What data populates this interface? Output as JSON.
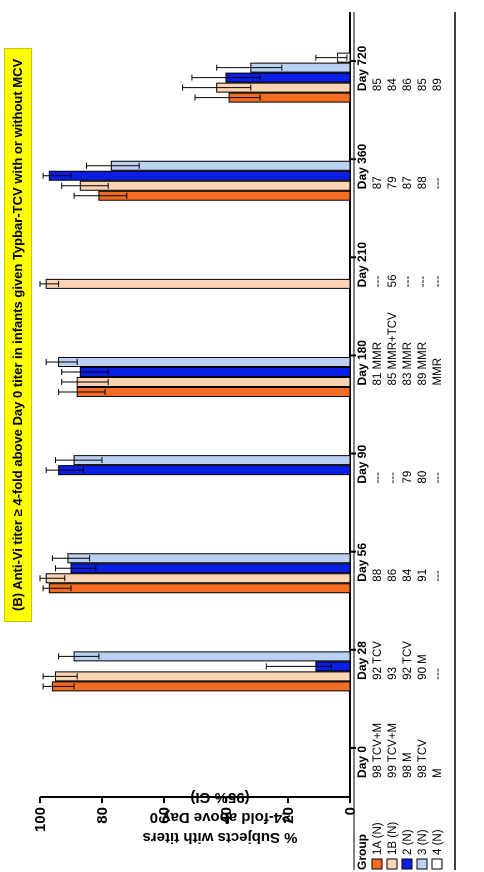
{
  "colors": {
    "1A (N)": "#f26c22",
    "1B (N)": "#fbd4b4",
    "2 (N)": "#0b1ee6",
    "3 (N)": "#bcd0f2",
    "4 (N)": "#ffffff"
  },
  "chart_data": {
    "type": "bar",
    "title": "(B) Anti-Vi titer ≥ 4-fold above Day 0 titer in infants given Typbar-TCV with or without MCV",
    "ylabel_line1": "% Subjects with titers",
    "ylabel_line2": "≥4-fold above Day 0",
    "ylabel_line3": "(95% CI)",
    "ylim": [
      0,
      100
    ],
    "yticks": [
      0,
      20,
      40,
      60,
      80,
      100
    ],
    "orientation": "vertical bars; whole figure shown rotated 90° clockwise",
    "categories": [
      "Day 0",
      "Day 28",
      "Day 56",
      "Day 90",
      "Day 180",
      "Day 210",
      "Day 360",
      "Day 720"
    ],
    "series": [
      {
        "name": "1A (N)",
        "values": [
          null,
          96,
          97,
          null,
          88,
          null,
          81,
          39
        ],
        "ci_low": [
          null,
          89,
          90,
          null,
          79,
          null,
          72,
          29
        ],
        "ci_high": [
          null,
          99,
          99,
          null,
          94,
          null,
          89,
          50
        ]
      },
      {
        "name": "1B (N)",
        "values": [
          null,
          95,
          98,
          null,
          88,
          98,
          87,
          43
        ],
        "ci_low": [
          null,
          88,
          92,
          null,
          78,
          94,
          78,
          32
        ],
        "ci_high": [
          null,
          99,
          100,
          null,
          93,
          100,
          93,
          54
        ]
      },
      {
        "name": "2 (N)",
        "values": [
          null,
          11,
          90,
          94,
          87,
          null,
          97,
          40
        ],
        "ci_low": [
          null,
          6,
          82,
          86,
          78,
          null,
          90,
          29
        ],
        "ci_high": [
          null,
          27,
          95,
          98,
          93,
          null,
          99,
          51
        ]
      },
      {
        "name": "3 (N)",
        "values": [
          null,
          89,
          91,
          89,
          94,
          null,
          77,
          32
        ],
        "ci_low": [
          null,
          81,
          84,
          80,
          88,
          null,
          68,
          22
        ],
        "ci_high": [
          null,
          94,
          96,
          95,
          98,
          null,
          85,
          43
        ]
      },
      {
        "name": "4 (N)",
        "values": [
          null,
          null,
          null,
          null,
          null,
          null,
          null,
          4
        ],
        "ci_low": [
          null,
          null,
          null,
          null,
          null,
          null,
          null,
          1
        ],
        "ci_high": [
          null,
          null,
          null,
          null,
          null,
          null,
          null,
          11
        ]
      }
    ],
    "table": {
      "header": "Group",
      "rows": [
        {
          "group": "1A (N)",
          "cells": [
            "98 TCV+M",
            "92 TCV",
            "88",
            "---",
            "81 MMR",
            "---",
            "87",
            "85"
          ]
        },
        {
          "group": "1B (N)",
          "cells": [
            "99 TCV+M",
            "93",
            "86",
            "---",
            "85 MMR+TCV",
            "56",
            "79",
            "84"
          ]
        },
        {
          "group": "2 (N)",
          "cells": [
            "98 M",
            "92 TCV",
            "84",
            "79",
            "83 MMR",
            "---",
            "87",
            "86"
          ]
        },
        {
          "group": "3 (N)",
          "cells": [
            "98 TCV",
            "90 M",
            "91",
            "80",
            "89 MMR",
            "---",
            "88",
            "85"
          ]
        },
        {
          "group": "4 (N)",
          "cells": [
            "M",
            "---",
            "---",
            "---",
            "MMR",
            "---",
            "---",
            "89"
          ]
        }
      ]
    }
  }
}
